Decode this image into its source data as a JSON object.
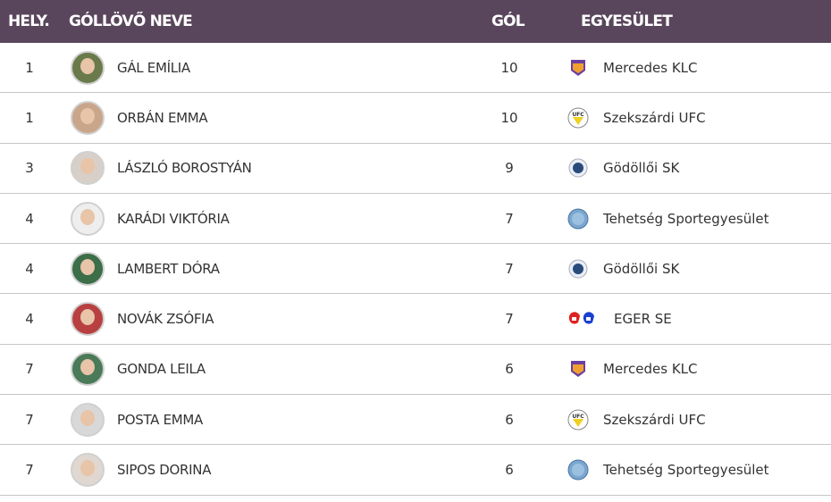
{
  "header": {
    "rank": "HELY.",
    "name": "GÓLLÖVŐ NEVE",
    "goals": "GÓL",
    "club": "EGYESÜLET"
  },
  "rows": [
    {
      "rank": "1",
      "name": "GÁL EMÍLIA",
      "goals": "10",
      "club": "Mercedes KLC",
      "logo": "klc",
      "avatar_bg": "#6a7a4a"
    },
    {
      "rank": "1",
      "name": "ORBÁN EMMA",
      "goals": "10",
      "club": "Szekszárdi UFC",
      "logo": "ufc",
      "avatar_bg": "#c9a58a"
    },
    {
      "rank": "3",
      "name": "LÁSZLÓ BOROSTYÁN",
      "goals": "9",
      "club": "Gödöllői SK",
      "logo": "gsk",
      "avatar_bg": "#d8d0c8"
    },
    {
      "rank": "4",
      "name": "KARÁDI VIKTÓRIA",
      "goals": "7",
      "club": "Tehetség Sportegyesület",
      "logo": "tse",
      "avatar_bg": "#eeeeee"
    },
    {
      "rank": "4",
      "name": "LAMBERT DÓRA",
      "goals": "7",
      "club": "Gödöllői SK",
      "logo": "gsk",
      "avatar_bg": "#3c6e48"
    },
    {
      "rank": "4",
      "name": "NOVÁK ZSÓFIA",
      "goals": "7",
      "club": "EGER SE",
      "logo": "eger",
      "avatar_bg": "#b84040"
    },
    {
      "rank": "7",
      "name": "GONDA LEILA",
      "goals": "6",
      "club": "Mercedes KLC",
      "logo": "klc",
      "avatar_bg": "#4a7a58"
    },
    {
      "rank": "7",
      "name": "POSTA EMMA",
      "goals": "6",
      "club": "Szekszárdi UFC",
      "logo": "ufc",
      "avatar_bg": "#d8d8d8"
    },
    {
      "rank": "7",
      "name": "SIPOS DORINA",
      "goals": "6",
      "club": "Tehetség Sportegyesület",
      "logo": "tse",
      "avatar_bg": "#e0d8d0"
    }
  ],
  "colors": {
    "header_bg": "#5a465c",
    "separator": "#c4c6ca"
  }
}
